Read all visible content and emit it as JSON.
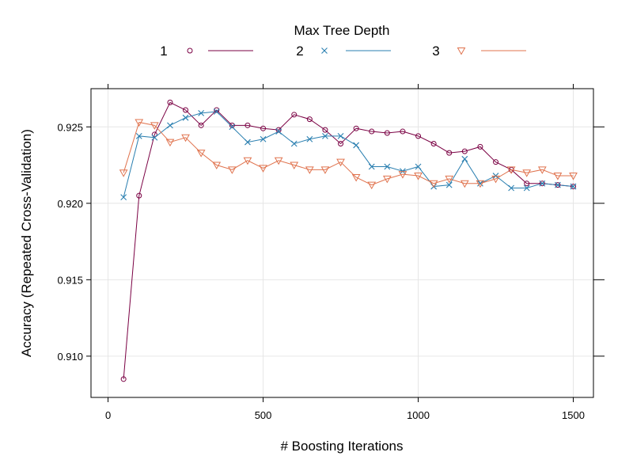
{
  "chart_data": {
    "type": "line",
    "title": "",
    "xlabel": "# Boosting Iterations",
    "ylabel": "Accuracy (Repeated Cross-Validation)",
    "xlim": [
      -55,
      1565
    ],
    "ylim": [
      0.9073,
      0.9275
    ],
    "x_ticks": [
      0,
      500,
      1000,
      1500
    ],
    "x_tick_labels": [
      "0",
      "500",
      "1000",
      "1500"
    ],
    "y_ticks": [
      0.91,
      0.915,
      0.92,
      0.925
    ],
    "y_tick_labels": [
      "0.910",
      "0.915",
      "0.920",
      "0.925"
    ],
    "grid": true,
    "legend": {
      "title": "Max Tree Depth",
      "placement": "top"
    },
    "x": [
      50,
      100,
      150,
      200,
      250,
      300,
      350,
      400,
      450,
      500,
      550,
      600,
      650,
      700,
      750,
      800,
      850,
      900,
      950,
      1000,
      1050,
      1100,
      1150,
      1200,
      1250,
      1300,
      1350,
      1400,
      1450,
      1500
    ],
    "series": [
      {
        "name": "1",
        "color": "#7a0043",
        "marker": "circle",
        "values": [
          0.9085,
          0.9205,
          0.9245,
          0.9266,
          0.9261,
          0.9251,
          0.9261,
          0.9251,
          0.9251,
          0.9249,
          0.9248,
          0.9258,
          0.9255,
          0.9248,
          0.9239,
          0.9249,
          0.9247,
          0.9246,
          0.9247,
          0.9244,
          0.9239,
          0.9233,
          0.9234,
          0.9237,
          0.9227,
          0.9222,
          0.9213,
          0.9213,
          0.9212,
          0.9211
        ]
      },
      {
        "name": "2",
        "color": "#2a7fb0",
        "marker": "x",
        "values": [
          0.9204,
          0.9244,
          0.9243,
          0.9251,
          0.9256,
          0.9259,
          0.926,
          0.925,
          0.924,
          0.9242,
          0.9247,
          0.9239,
          0.9242,
          0.9244,
          0.9244,
          0.9238,
          0.9224,
          0.9224,
          0.9221,
          0.9224,
          0.9211,
          0.9212,
          0.9229,
          0.9213,
          0.9218,
          0.921,
          0.921,
          0.9213,
          0.9212,
          0.9211
        ]
      },
      {
        "name": "3",
        "color": "#e0734e",
        "marker": "triangle-down",
        "values": [
          0.922,
          0.9253,
          0.9251,
          0.924,
          0.9243,
          0.9233,
          0.9225,
          0.9222,
          0.9228,
          0.9223,
          0.9228,
          0.9225,
          0.9222,
          0.9222,
          0.9227,
          0.9217,
          0.9212,
          0.9216,
          0.9219,
          0.9218,
          0.9213,
          0.9216,
          0.9213,
          0.9213,
          0.9216,
          0.9222,
          0.922,
          0.9222,
          0.9218,
          0.9218
        ]
      }
    ]
  }
}
